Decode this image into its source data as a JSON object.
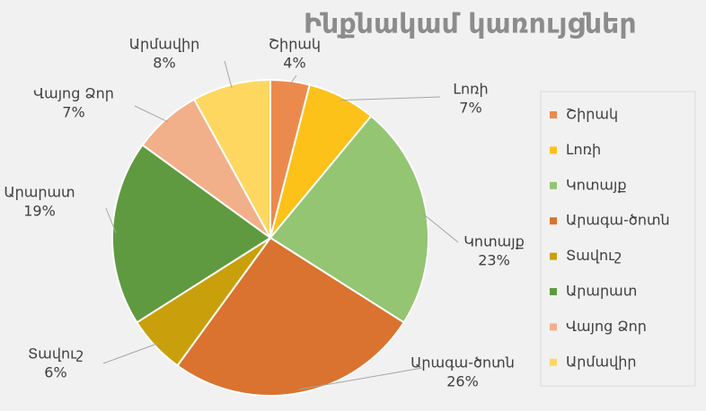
{
  "chart_data": {
    "type": "pie",
    "title": "Ինքնակամ կառույցներ",
    "categories": [
      "Շիրակ",
      "Լոռի",
      "Կոտայք",
      "Արագա-ծոտն",
      "Տավուշ",
      "Արարատ",
      "Վայոց  Ձոր",
      "Արմավիր"
    ],
    "values": [
      4,
      7,
      23,
      26,
      6,
      19,
      7,
      8
    ],
    "value_labels": [
      "4%",
      "7%",
      "23%",
      "26%",
      "6%",
      "19%",
      "7%",
      "8%"
    ],
    "colors": [
      "#ec8a4e",
      "#fcc21a",
      "#93c572",
      "#d9732f",
      "#c9a00c",
      "#5f9a40",
      "#f2b08a",
      "#fdd760"
    ],
    "legend": "right"
  }
}
